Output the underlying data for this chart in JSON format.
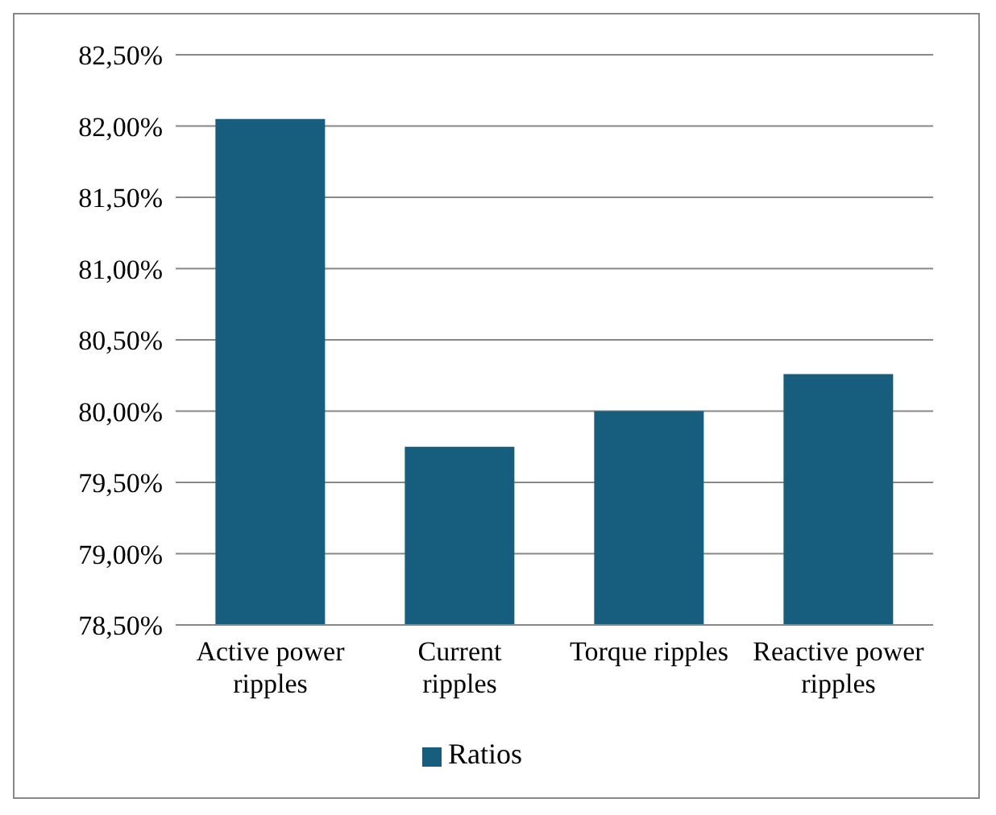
{
  "chart_data": {
    "type": "bar",
    "categories": [
      "Active power ripples",
      "Current ripples",
      "Torque ripples",
      "Reactive power ripples"
    ],
    "series": [
      {
        "name": "Ratios",
        "color": "#175e7e",
        "values": [
          82.05,
          79.75,
          80.0,
          80.26
        ]
      }
    ],
    "ylim": [
      78.5,
      82.5
    ],
    "yticks": [
      {
        "value": 78.5,
        "label": "78,50%"
      },
      {
        "value": 79,
        "label": "79,00%"
      },
      {
        "value": 79.5,
        "label": "79,50%"
      },
      {
        "value": 80,
        "label": "80,00%"
      },
      {
        "value": 80.5,
        "label": "80,50%"
      },
      {
        "value": 81,
        "label": "81,00%"
      },
      {
        "value": 81.5,
        "label": "81,50%"
      },
      {
        "value": 82,
        "label": "82,00%"
      },
      {
        "value": 82.5,
        "label": "82,50%"
      }
    ],
    "grid": "y",
    "legend": "bottom"
  }
}
